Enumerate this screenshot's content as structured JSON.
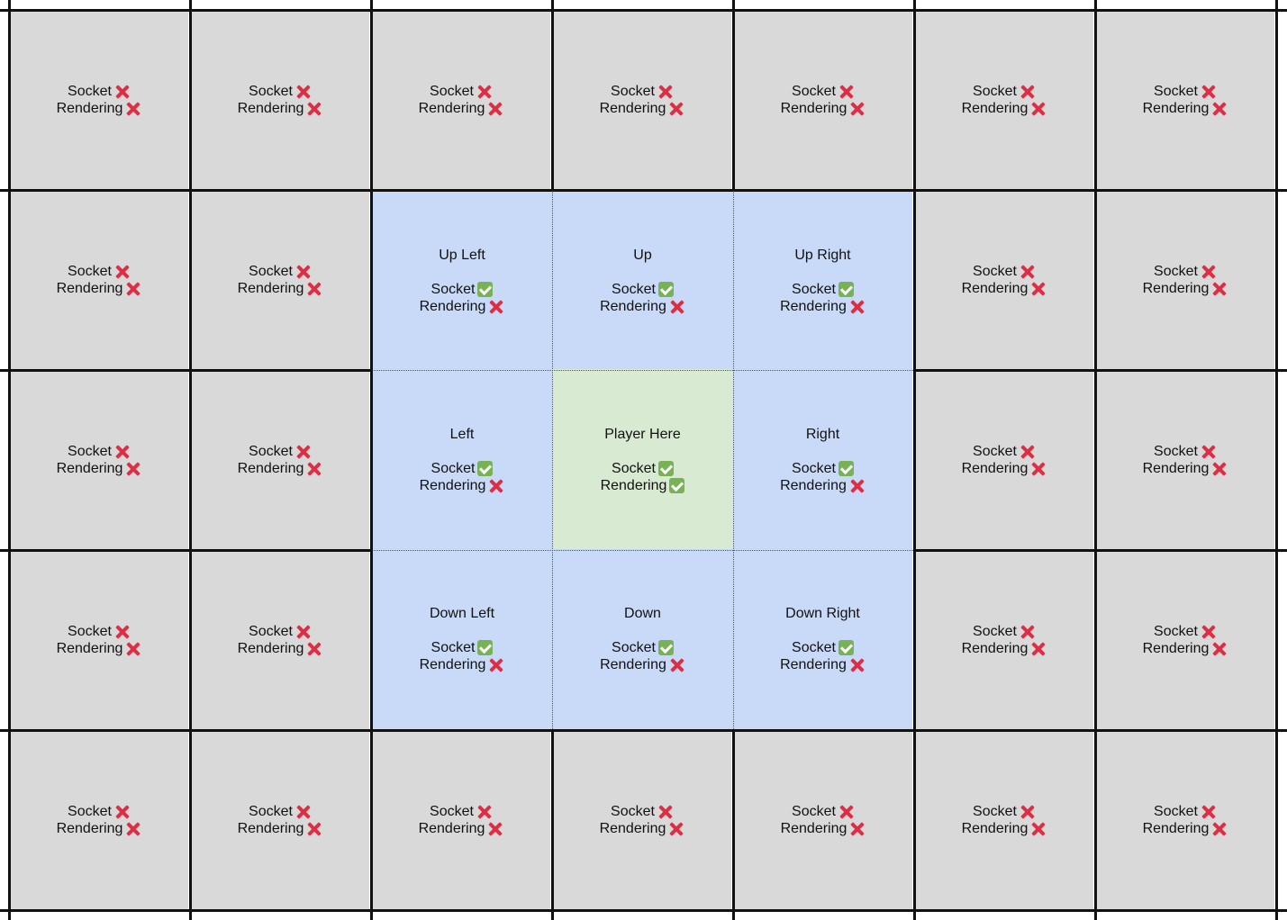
{
  "labels": {
    "socket": "Socket",
    "rendering": "Rendering"
  },
  "icons": {
    "yes": "check-mark-icon",
    "no": "cross-mark-icon"
  },
  "colors": {
    "outer_cell": "#d9d9d9",
    "nearby_cell": "#c9daf8",
    "player_cell": "#d9ead3",
    "cross": "#dd2e44",
    "check": "#77b255"
  },
  "grid": {
    "rows": [
      [
        {
          "type": "outer",
          "title": "",
          "socket": false,
          "rendering": false
        },
        {
          "type": "outer",
          "title": "",
          "socket": false,
          "rendering": false
        },
        {
          "type": "outer",
          "title": "",
          "socket": false,
          "rendering": false
        },
        {
          "type": "outer",
          "title": "",
          "socket": false,
          "rendering": false
        },
        {
          "type": "outer",
          "title": "",
          "socket": false,
          "rendering": false
        },
        {
          "type": "outer",
          "title": "",
          "socket": false,
          "rendering": false
        },
        {
          "type": "outer",
          "title": "",
          "socket": false,
          "rendering": false
        }
      ],
      [
        {
          "type": "outer",
          "title": "",
          "socket": false,
          "rendering": false
        },
        {
          "type": "outer",
          "title": "",
          "socket": false,
          "rendering": false
        },
        {
          "type": "near",
          "title": "Up Left",
          "socket": true,
          "rendering": false
        },
        {
          "type": "near",
          "title": "Up",
          "socket": true,
          "rendering": false
        },
        {
          "type": "near",
          "title": "Up Right",
          "socket": true,
          "rendering": false
        },
        {
          "type": "outer",
          "title": "",
          "socket": false,
          "rendering": false
        },
        {
          "type": "outer",
          "title": "",
          "socket": false,
          "rendering": false
        }
      ],
      [
        {
          "type": "outer",
          "title": "",
          "socket": false,
          "rendering": false
        },
        {
          "type": "outer",
          "title": "",
          "socket": false,
          "rendering": false
        },
        {
          "type": "near",
          "title": "Left",
          "socket": true,
          "rendering": false
        },
        {
          "type": "player",
          "title": "Player Here",
          "socket": true,
          "rendering": true
        },
        {
          "type": "near",
          "title": "Right",
          "socket": true,
          "rendering": false
        },
        {
          "type": "outer",
          "title": "",
          "socket": false,
          "rendering": false
        },
        {
          "type": "outer",
          "title": "",
          "socket": false,
          "rendering": false
        }
      ],
      [
        {
          "type": "outer",
          "title": "",
          "socket": false,
          "rendering": false
        },
        {
          "type": "outer",
          "title": "",
          "socket": false,
          "rendering": false
        },
        {
          "type": "near",
          "title": "Down Left",
          "socket": true,
          "rendering": false
        },
        {
          "type": "near",
          "title": "Down",
          "socket": true,
          "rendering": false
        },
        {
          "type": "near",
          "title": "Down Right",
          "socket": true,
          "rendering": false
        },
        {
          "type": "outer",
          "title": "",
          "socket": false,
          "rendering": false
        },
        {
          "type": "outer",
          "title": "",
          "socket": false,
          "rendering": false
        }
      ],
      [
        {
          "type": "outer",
          "title": "",
          "socket": false,
          "rendering": false
        },
        {
          "type": "outer",
          "title": "",
          "socket": false,
          "rendering": false
        },
        {
          "type": "outer",
          "title": "",
          "socket": false,
          "rendering": false
        },
        {
          "type": "outer",
          "title": "",
          "socket": false,
          "rendering": false
        },
        {
          "type": "outer",
          "title": "",
          "socket": false,
          "rendering": false
        },
        {
          "type": "outer",
          "title": "",
          "socket": false,
          "rendering": false
        },
        {
          "type": "outer",
          "title": "",
          "socket": false,
          "rendering": false
        }
      ]
    ]
  }
}
